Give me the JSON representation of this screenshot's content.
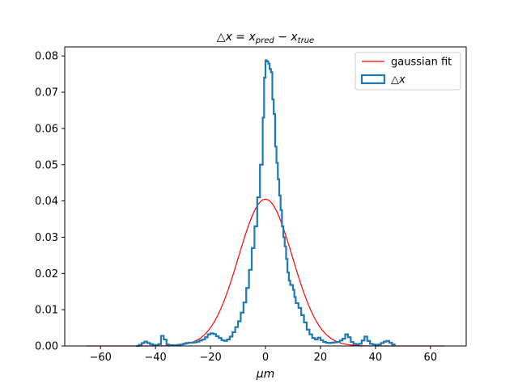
{
  "chart_data": {
    "type": "histogram",
    "title_html": "△x = x<tspan font-size='10' dy='3'>pred</tspan><tspan dy='-3'> − x</tspan><tspan font-size='10' dy='3'>true</tspan>",
    "title": "△x = x_pred − x_true",
    "xlabel": "μm",
    "ylabel": "",
    "xlim": [
      -73,
      73
    ],
    "ylim": [
      0,
      0.0825
    ],
    "xticks": [
      -60,
      -40,
      -20,
      0,
      20,
      40,
      60
    ],
    "yticks": [
      0.0,
      0.01,
      0.02,
      0.03,
      0.04,
      0.05,
      0.06,
      0.07,
      0.08
    ],
    "ytick_labels": [
      "0.00",
      "0.01",
      "0.02",
      "0.03",
      "0.04",
      "0.05",
      "0.06",
      "0.07",
      "0.08"
    ],
    "xtick_labels": [
      "−60",
      "−40",
      "−20",
      "0",
      "20",
      "40",
      "60"
    ],
    "legend": {
      "position": "top-right",
      "entries": [
        {
          "label": "gaussian fit",
          "kind": "line",
          "color": "#ff0000"
        },
        {
          "label": "△x",
          "kind": "patch",
          "color": "#1f77b4"
        }
      ]
    },
    "series": [
      {
        "name": "gaussian fit",
        "kind": "line",
        "color": "#ff0000",
        "mu": 0.0,
        "sigma": 9.8,
        "amplitude": 0.0405,
        "x_range": [
          -65,
          65
        ]
      },
      {
        "name": "△x",
        "kind": "step",
        "color": "#1f77b4",
        "points": [
          [
            -47,
            0.0
          ],
          [
            -46,
            0.0003
          ],
          [
            -45,
            0.0008
          ],
          [
            -44,
            0.0012
          ],
          [
            -43,
            0.0008
          ],
          [
            -42,
            0.0005
          ],
          [
            -41,
            0.0003
          ],
          [
            -40,
            0.0002
          ],
          [
            -39,
            0.0005
          ],
          [
            -38,
            0.0028
          ],
          [
            -37,
            0.0018
          ],
          [
            -36,
            0.0004
          ],
          [
            -35,
            0.0002
          ],
          [
            -34,
            0.0002
          ],
          [
            -33,
            0.0002
          ],
          [
            -32,
            0.0003
          ],
          [
            -31,
            0.0004
          ],
          [
            -30,
            0.0006
          ],
          [
            -29,
            0.0008
          ],
          [
            -28,
            0.0009
          ],
          [
            -27,
            0.0009
          ],
          [
            -26,
            0.001
          ],
          [
            -25,
            0.0012
          ],
          [
            -24,
            0.0015
          ],
          [
            -23,
            0.0018
          ],
          [
            -22,
            0.0024
          ],
          [
            -21,
            0.0032
          ],
          [
            -20,
            0.0035
          ],
          [
            -19,
            0.0033
          ],
          [
            -18,
            0.0027
          ],
          [
            -17,
            0.0022
          ],
          [
            -16,
            0.0016
          ],
          [
            -15,
            0.0014
          ],
          [
            -14,
            0.0018
          ],
          [
            -13,
            0.0026
          ],
          [
            -12,
            0.0038
          ],
          [
            -11,
            0.0052
          ],
          [
            -10,
            0.0068
          ],
          [
            -9,
            0.0092
          ],
          [
            -8,
            0.012
          ],
          [
            -7,
            0.016
          ],
          [
            -6,
            0.021
          ],
          [
            -5,
            0.027
          ],
          [
            -4,
            0.033
          ],
          [
            -3,
            0.041
          ],
          [
            -2,
            0.05
          ],
          [
            -1,
            0.063
          ],
          [
            -0.5,
            0.074
          ],
          [
            0,
            0.0788
          ],
          [
            0.5,
            0.0785
          ],
          [
            1,
            0.0779
          ],
          [
            1.5,
            0.0764
          ],
          [
            2,
            0.0755
          ],
          [
            2.5,
            0.068
          ],
          [
            3,
            0.064
          ],
          [
            3.5,
            0.055
          ],
          [
            4,
            0.0505
          ],
          [
            4.5,
            0.046
          ],
          [
            5,
            0.0415
          ],
          [
            5.5,
            0.0375
          ],
          [
            6,
            0.033
          ],
          [
            6.5,
            0.03
          ],
          [
            7,
            0.0275
          ],
          [
            7.5,
            0.024
          ],
          [
            8,
            0.0203
          ],
          [
            8.5,
            0.018
          ],
          [
            9,
            0.0168
          ],
          [
            10,
            0.0155
          ],
          [
            10.5,
            0.0135
          ],
          [
            11,
            0.0118
          ],
          [
            12,
            0.0105
          ],
          [
            13,
            0.0085
          ],
          [
            14,
            0.0065
          ],
          [
            15,
            0.0045
          ],
          [
            16,
            0.0032
          ],
          [
            17,
            0.0022
          ],
          [
            18,
            0.0018
          ],
          [
            19,
            0.0023
          ],
          [
            20,
            0.0016
          ],
          [
            21,
            0.0011
          ],
          [
            22,
            0.0009
          ],
          [
            23,
            0.0008
          ],
          [
            24,
            0.0009
          ],
          [
            25,
            0.001
          ],
          [
            26,
            0.0011
          ],
          [
            27,
            0.0015
          ],
          [
            28,
            0.002
          ],
          [
            29,
            0.0032
          ],
          [
            30,
            0.0024
          ],
          [
            31,
            0.0011
          ],
          [
            32,
            0.0006
          ],
          [
            33,
            0.0004
          ],
          [
            34,
            0.0006
          ],
          [
            35,
            0.0015
          ],
          [
            36,
            0.0026
          ],
          [
            37,
            0.0014
          ],
          [
            38,
            0.0006
          ],
          [
            39,
            0.0004
          ],
          [
            40,
            0.0003
          ],
          [
            41,
            0.0004
          ],
          [
            42,
            0.0008
          ],
          [
            43,
            0.0012
          ],
          [
            44,
            0.0014
          ],
          [
            45,
            0.0009
          ],
          [
            46,
            0.0004
          ],
          [
            47,
            0.0
          ]
        ]
      }
    ]
  }
}
